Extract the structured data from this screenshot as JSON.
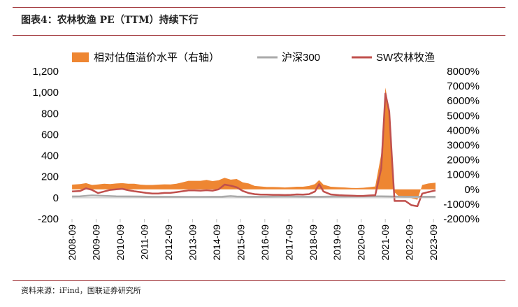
{
  "header": {
    "title": "图表4：农林牧渔 PE（TTM）持续下行"
  },
  "footer": {
    "source": "资料来源：iFind，国联证券研究所"
  },
  "chart_data": {
    "type": "line",
    "categories": [
      "2008-09",
      "2009-09",
      "2010-09",
      "2011-09",
      "2012-09",
      "2013-09",
      "2014-09",
      "2015-09",
      "2016-09",
      "2017-09",
      "2018-09",
      "2019-09",
      "2020-09",
      "2021-09",
      "2022-09",
      "2023-09"
    ],
    "x_start": 2008.667,
    "x_end": 2023.75,
    "left_axis": {
      "ylim": [
        -200,
        1200
      ],
      "ticks": [
        -200,
        0,
        200,
        400,
        600,
        800,
        1000,
        1200
      ],
      "tick_labels": [
        "-200",
        "0",
        "200",
        "400",
        "600",
        "800",
        "1,000",
        "1,200"
      ]
    },
    "right_axis": {
      "ylim": [
        -2000,
        8000
      ],
      "ticks": [
        -2000,
        -1000,
        0,
        1000,
        2000,
        3000,
        4000,
        5000,
        6000,
        7000,
        8000
      ],
      "tick_labels": [
        "-2000%",
        "-1000%",
        "0%",
        "1000%",
        "2000%",
        "3000%",
        "4000%",
        "5000%",
        "6000%",
        "7000%",
        "8000%"
      ]
    },
    "legend_position": "top",
    "series": [
      {
        "name": "相对估值溢价水平（右轴）",
        "axis": "right",
        "style": "area",
        "color": "#ee8632",
        "points": [
          [
            2008.67,
            320
          ],
          [
            2009.0,
            360
          ],
          [
            2009.25,
            420
          ],
          [
            2009.5,
            300
          ],
          [
            2009.75,
            330
          ],
          [
            2010.0,
            380
          ],
          [
            2010.25,
            360
          ],
          [
            2010.5,
            400
          ],
          [
            2010.75,
            420
          ],
          [
            2011.0,
            380
          ],
          [
            2011.25,
            380
          ],
          [
            2011.5,
            320
          ],
          [
            2011.75,
            300
          ],
          [
            2012.0,
            300
          ],
          [
            2012.25,
            320
          ],
          [
            2012.5,
            340
          ],
          [
            2012.75,
            330
          ],
          [
            2013.0,
            380
          ],
          [
            2013.25,
            480
          ],
          [
            2013.5,
            580
          ],
          [
            2013.75,
            580
          ],
          [
            2014.0,
            580
          ],
          [
            2014.25,
            640
          ],
          [
            2014.5,
            560
          ],
          [
            2014.75,
            620
          ],
          [
            2015.0,
            780
          ],
          [
            2015.25,
            660
          ],
          [
            2015.5,
            700
          ],
          [
            2015.75,
            480
          ],
          [
            2016.0,
            400
          ],
          [
            2016.25,
            230
          ],
          [
            2016.5,
            200
          ],
          [
            2016.75,
            160
          ],
          [
            2017.0,
            160
          ],
          [
            2017.25,
            150
          ],
          [
            2017.5,
            130
          ],
          [
            2017.75,
            150
          ],
          [
            2018.0,
            180
          ],
          [
            2018.25,
            180
          ],
          [
            2018.5,
            230
          ],
          [
            2018.75,
            360
          ],
          [
            2018.92,
            630
          ],
          [
            2019.1,
            320
          ],
          [
            2019.4,
            180
          ],
          [
            2019.75,
            140
          ],
          [
            2020.0,
            130
          ],
          [
            2020.25,
            100
          ],
          [
            2020.5,
            90
          ],
          [
            2020.75,
            110
          ],
          [
            2021.0,
            150
          ],
          [
            2021.25,
            200
          ],
          [
            2021.5,
            2400
          ],
          [
            2021.67,
            6900
          ],
          [
            2021.83,
            5400
          ],
          [
            2021.95,
            2000
          ],
          [
            2022.05,
            -200
          ],
          [
            2022.25,
            -500
          ],
          [
            2022.5,
            -500
          ],
          [
            2022.75,
            -600
          ],
          [
            2023.0,
            -700
          ],
          [
            2023.2,
            300
          ],
          [
            2023.45,
            400
          ],
          [
            2023.75,
            450
          ]
        ]
      },
      {
        "name": "沪深300",
        "axis": "left",
        "style": "line",
        "color": "#aaaaaa",
        "points": [
          [
            2008.67,
            13
          ],
          [
            2009.0,
            14
          ],
          [
            2009.5,
            23
          ],
          [
            2009.75,
            20
          ],
          [
            2010.25,
            16
          ],
          [
            2010.5,
            14
          ],
          [
            2011.0,
            13
          ],
          [
            2011.5,
            12
          ],
          [
            2012.0,
            10
          ],
          [
            2012.5,
            10
          ],
          [
            2013.0,
            10
          ],
          [
            2013.5,
            9
          ],
          [
            2014.0,
            9
          ],
          [
            2014.5,
            10
          ],
          [
            2014.9,
            11
          ],
          [
            2015.25,
            16
          ],
          [
            2015.5,
            12
          ],
          [
            2016.0,
            11
          ],
          [
            2016.5,
            11
          ],
          [
            2017.0,
            12
          ],
          [
            2017.5,
            13
          ],
          [
            2018.0,
            12
          ],
          [
            2018.5,
            11
          ],
          [
            2019.0,
            11
          ],
          [
            2019.5,
            12
          ],
          [
            2020.0,
            12
          ],
          [
            2020.5,
            13
          ],
          [
            2021.0,
            14
          ],
          [
            2021.5,
            14
          ],
          [
            2022.0,
            12
          ],
          [
            2022.5,
            11
          ],
          [
            2023.0,
            11
          ],
          [
            2023.75,
            11
          ]
        ]
      },
      {
        "name": "SW农林牧渔",
        "axis": "left",
        "style": "line",
        "color": "#c0504d",
        "points": [
          [
            2008.67,
            60
          ],
          [
            2009.0,
            65
          ],
          [
            2009.25,
            90
          ],
          [
            2009.5,
            75
          ],
          [
            2009.75,
            45
          ],
          [
            2010.0,
            60
          ],
          [
            2010.25,
            75
          ],
          [
            2010.5,
            80
          ],
          [
            2010.75,
            85
          ],
          [
            2011.0,
            72
          ],
          [
            2011.25,
            62
          ],
          [
            2011.5,
            55
          ],
          [
            2011.75,
            46
          ],
          [
            2012.0,
            40
          ],
          [
            2012.25,
            40
          ],
          [
            2012.5,
            46
          ],
          [
            2012.75,
            47
          ],
          [
            2013.0,
            54
          ],
          [
            2013.25,
            62
          ],
          [
            2013.5,
            70
          ],
          [
            2013.75,
            70
          ],
          [
            2014.0,
            68
          ],
          [
            2014.25,
            72
          ],
          [
            2014.5,
            68
          ],
          [
            2014.75,
            80
          ],
          [
            2015.0,
            125
          ],
          [
            2015.25,
            115
          ],
          [
            2015.5,
            100
          ],
          [
            2015.75,
            65
          ],
          [
            2016.0,
            45
          ],
          [
            2016.25,
            35
          ],
          [
            2016.5,
            30
          ],
          [
            2016.75,
            30
          ],
          [
            2017.0,
            28
          ],
          [
            2017.25,
            28
          ],
          [
            2017.5,
            26
          ],
          [
            2017.75,
            28
          ],
          [
            2018.0,
            32
          ],
          [
            2018.25,
            30
          ],
          [
            2018.5,
            35
          ],
          [
            2018.75,
            60
          ],
          [
            2018.92,
            130
          ],
          [
            2019.1,
            60
          ],
          [
            2019.4,
            32
          ],
          [
            2019.75,
            25
          ],
          [
            2020.0,
            22
          ],
          [
            2020.25,
            20
          ],
          [
            2020.5,
            18
          ],
          [
            2020.75,
            18
          ],
          [
            2021.0,
            22
          ],
          [
            2021.25,
            25
          ],
          [
            2021.5,
            280
          ],
          [
            2021.67,
            990
          ],
          [
            2021.83,
            820
          ],
          [
            2021.95,
            350
          ],
          [
            2022.05,
            -30
          ],
          [
            2022.25,
            -30
          ],
          [
            2022.5,
            -30
          ],
          [
            2022.75,
            -70
          ],
          [
            2023.0,
            -80
          ],
          [
            2023.2,
            40
          ],
          [
            2023.45,
            55
          ],
          [
            2023.75,
            70
          ]
        ]
      }
    ]
  }
}
